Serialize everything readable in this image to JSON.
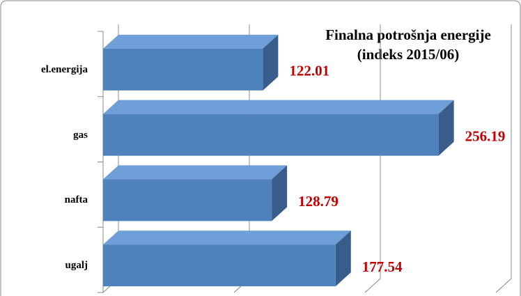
{
  "chart_data": {
    "type": "bar3d_horizontal",
    "title": "Finalna potrošnja energije",
    "subtitle": "(indeks 2015/06)",
    "categories": [
      "el.energija",
      "gas",
      "nafta",
      "ugalj"
    ],
    "values": [
      122.01,
      256.19,
      128.79,
      177.54
    ],
    "color": "#4f81bd",
    "label_color": "#c00000",
    "xlim": [
      0,
      300
    ],
    "xticks": [
      0,
      100,
      200,
      300
    ],
    "grid": true
  }
}
